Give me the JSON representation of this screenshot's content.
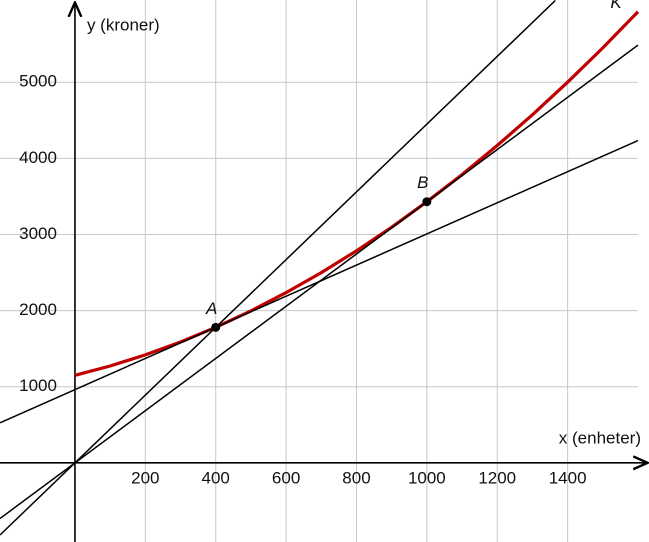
{
  "chart_data": {
    "type": "line",
    "x_label": "x (enheter)",
    "y_label": "y (kroner)",
    "xlim": [
      -213,
      1600
    ],
    "ylim": [
      -1040,
      6080
    ],
    "xticks": [
      200,
      400,
      600,
      800,
      1000,
      1200,
      1400
    ],
    "yticks": [
      1000,
      2000,
      3000,
      4000,
      5000
    ],
    "grid": true,
    "series": [
      {
        "name": "K",
        "color": "#c00000",
        "x": [
          0,
          100,
          200,
          300,
          400,
          500,
          600,
          700,
          800,
          900,
          1000,
          1100,
          1200,
          1300,
          1400,
          1500,
          1600
        ],
        "values": [
          1150,
          1272,
          1418,
          1587,
          1780,
          1996,
          2236,
          2499,
          2786,
          3096,
          3430,
          3787,
          4168,
          4572,
          5000,
          5451,
          5926
        ]
      },
      {
        "color": "#000000",
        "x": [
          -213,
          1600
        ],
        "values": [
          526,
          4234
        ]
      },
      {
        "color": "#000000",
        "x": [
          -213,
          1365
        ],
        "values": [
          -948,
          6074
        ]
      },
      {
        "color": "#000000",
        "x": [
          -213,
          1600
        ],
        "values": [
          -731,
          5488
        ]
      }
    ],
    "points": [
      {
        "label": "A",
        "x": 400,
        "y": 1780
      },
      {
        "label": "B",
        "x": 1000,
        "y": 3430
      }
    ]
  }
}
